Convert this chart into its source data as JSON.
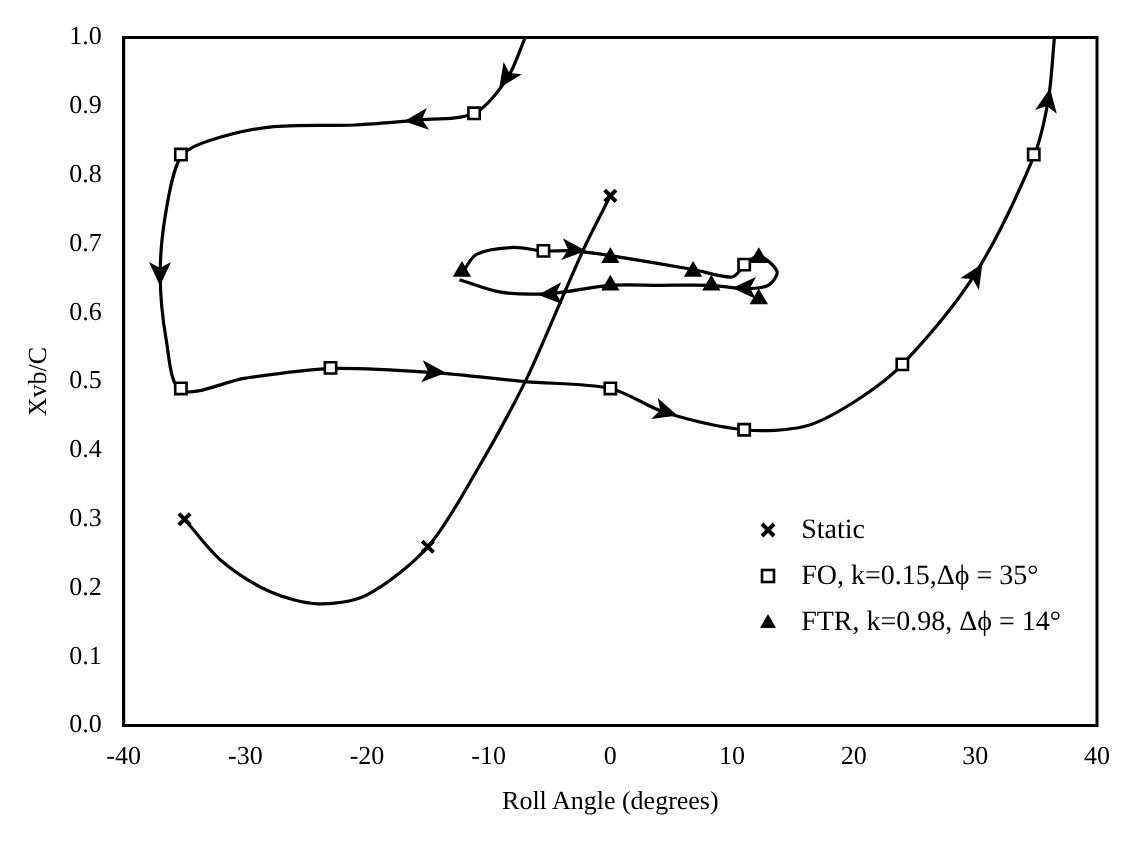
{
  "chart_data": {
    "type": "scatter",
    "xlabel": "Roll Angle (degrees)",
    "ylabel": "Xvb/C",
    "xlim": [
      -40,
      40
    ],
    "xticks": [
      -40,
      -30,
      -20,
      -10,
      0,
      10,
      20,
      30,
      40
    ],
    "ylim": [
      0,
      1
    ],
    "yticks": [
      {
        "value": 0,
        "label": "0.0"
      },
      {
        "value": 0.1,
        "label": "0.1"
      },
      {
        "value": 0.2,
        "label": "0.2"
      },
      {
        "value": 0.3,
        "label": "0.3"
      },
      {
        "value": 0.4,
        "label": "0.4"
      },
      {
        "value": 0.5,
        "label": "0.5"
      },
      {
        "value": 0.6,
        "label": "0.6"
      },
      {
        "value": 0.7,
        "label": "0.7"
      },
      {
        "value": 0.8,
        "label": "0.8"
      },
      {
        "value": 0.9,
        "label": "0.9"
      },
      {
        "value": 1,
        "label": "1.0"
      }
    ],
    "grid": false,
    "legend": "bottom right",
    "series": [
      {
        "type": "scatter",
        "name": "Static",
        "marker": "cross",
        "color": "#000000",
        "x": [
          -35,
          -15,
          0
        ],
        "values": [
          0.3,
          0.26,
          0.77
        ]
      },
      {
        "type": "scatter",
        "name": "FO, k=0.15,Δϕ = 35°",
        "marker": "square",
        "color": "#000000",
        "x": [
          -11.2,
          -35.3,
          -35.3,
          -23,
          0,
          11,
          24,
          34.8,
          -5.5,
          11
        ],
        "values": [
          0.89,
          0.83,
          0.49,
          0.52,
          0.49,
          0.43,
          0.525,
          0.83,
          0.69,
          0.67
        ]
      },
      {
        "type": "scatter",
        "name": "FTR, k=0.98, Δϕ = 14°",
        "marker": "triangle",
        "color": "#000000",
        "x": [
          -12.2,
          0,
          0,
          6.8,
          8.3,
          12.2,
          12.2
        ],
        "values": [
          0.66,
          0.68,
          0.64,
          0.66,
          0.64,
          0.68,
          0.62
        ]
      },
      {
        "type": "line",
        "marker": "none",
        "color": "#000000",
        "x": [
          -35,
          -32,
          -28,
          -24,
          -20,
          -15,
          -11,
          -7,
          -4,
          -2,
          0
        ],
        "values": [
          0.3,
          0.24,
          0.195,
          0.177,
          0.19,
          0.26,
          0.37,
          0.5,
          0.62,
          0.7,
          0.77
        ]
      },
      {
        "type": "line",
        "marker": "none",
        "color": "#000000",
        "x": [
          -7,
          -8.5,
          -11.2,
          -16,
          -21,
          -28,
          -33,
          -35.3,
          -36.5,
          -37,
          -36.5,
          -35.3,
          -30,
          -23,
          -14.5,
          -7,
          0,
          4.5,
          11,
          16,
          20,
          24,
          30,
          34.8,
          36,
          36.5
        ],
        "values": [
          1.0,
          0.94,
          0.89,
          0.88,
          0.873,
          0.87,
          0.85,
          0.827,
          0.75,
          0.657,
          0.56,
          0.487,
          0.505,
          0.519,
          0.513,
          0.5,
          0.49,
          0.455,
          0.43,
          0.435,
          0.47,
          0.525,
          0.657,
          0.827,
          0.91,
          1.0
        ]
      },
      {
        "type": "line",
        "marker": "none",
        "color": "#000000",
        "x": [
          -12.2,
          -11,
          -8,
          -5.5,
          -3,
          0,
          6.8,
          10,
          11,
          12.2,
          13.7,
          13,
          11,
          8.3,
          4,
          0,
          -5,
          -9,
          -12.4
        ],
        "values": [
          0.657,
          0.685,
          0.695,
          0.69,
          0.69,
          0.683,
          0.663,
          0.652,
          0.668,
          0.683,
          0.66,
          0.64,
          0.635,
          0.64,
          0.64,
          0.64,
          0.628,
          0.63,
          0.648
        ]
      }
    ]
  }
}
